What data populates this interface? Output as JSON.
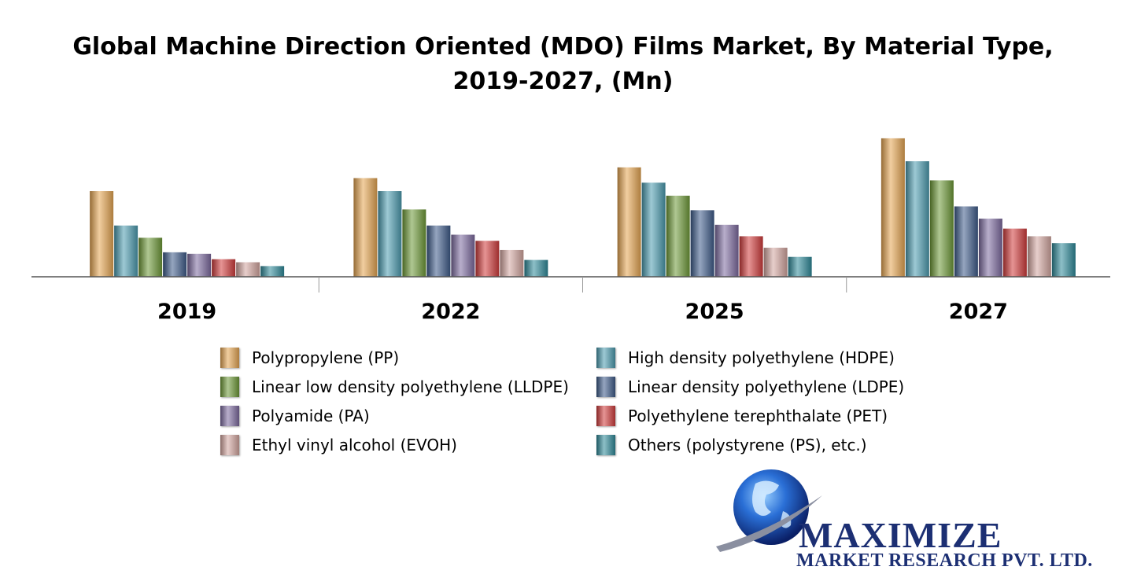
{
  "title_line1": "Global Machine Direction Oriented (MDO) Films Market, By Material Type,",
  "title_line2": "2019-2027, (Mn)",
  "chart_data": {
    "type": "bar",
    "categories": [
      "2019",
      "2022",
      "2025",
      "2027"
    ],
    "series": [
      {
        "name": "Polypropylene (PP)",
        "color": "#e6a653",
        "values": [
          112,
          129,
          143,
          181
        ]
      },
      {
        "name": "High density polyethylene (HDPE)",
        "color": "#4c9cb0",
        "values": [
          67,
          112,
          123,
          151
        ]
      },
      {
        "name": "Linear low density polyethylene (LLDPE)",
        "color": "#6e9a38",
        "values": [
          51,
          88,
          106,
          126
        ]
      },
      {
        "name": "Linear density polyethylene (LDPE)",
        "color": "#3e5c8a",
        "values": [
          32,
          67,
          87,
          92
        ]
      },
      {
        "name": "Polyamide (PA)",
        "color": "#7d6ba0",
        "values": [
          30,
          55,
          68,
          76
        ]
      },
      {
        "name": "Polyethylene terephthalate (PET)",
        "color": "#d13c3c",
        "values": [
          23,
          47,
          53,
          63
        ]
      },
      {
        "name": "Ethyl vinyl alcohol (EVOH)",
        "color": "#d4a6a0",
        "values": [
          19,
          35,
          38,
          53
        ]
      },
      {
        "name": "Others (polystyrene (PS), etc.)",
        "color": "#2f8a9a",
        "values": [
          14,
          22,
          26,
          44
        ]
      }
    ],
    "xlabel": "",
    "ylabel": "",
    "ylim": [
      0,
      185
    ],
    "grid": false,
    "legend_position": "bottom"
  },
  "logo": {
    "name": "MAXIMIZE",
    "subtitle": "MARKET RESEARCH PVT. LTD."
  }
}
